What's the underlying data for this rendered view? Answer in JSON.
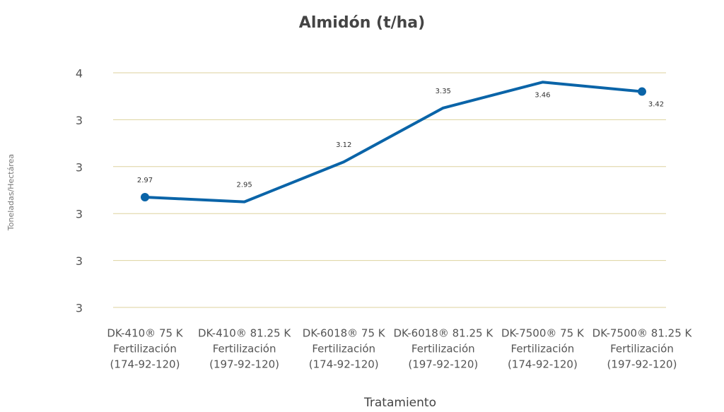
{
  "chart_data": {
    "type": "line",
    "title": "Almidón (t/ha)",
    "x_label": "Tratamiento",
    "y_label": "Toneladas/Hectárea",
    "categories": [
      [
        "DK-410® 75 K",
        "Fertilización",
        "(174-92-120)"
      ],
      [
        "DK-410® 81.25 K",
        "Fertilización",
        "(197-92-120)"
      ],
      [
        "DK-6018® 75 K",
        "Fertilización",
        "(174-92-120)"
      ],
      [
        "DK-6018® 81.25 K",
        "Fertilización",
        "(197-92-120)"
      ],
      [
        "DK-7500® 75 K",
        "Fertilización",
        "(174-92-120)"
      ],
      [
        "DK-7500® 81.25 K",
        "Fertilización",
        "(197-92-120)"
      ]
    ],
    "values": [
      2.97,
      2.95,
      3.12,
      3.35,
      3.46,
      3.42
    ],
    "color": "#0a64a8",
    "ylim": [
      2.5,
      3.5
    ],
    "yticks": [
      {
        "value": 3.5,
        "label": "4"
      },
      {
        "value": 3.3,
        "label": "3"
      },
      {
        "value": 3.1,
        "label": "3"
      },
      {
        "value": 2.9,
        "label": "3"
      },
      {
        "value": 2.7,
        "label": "3"
      },
      {
        "value": 2.5,
        "label": "3"
      }
    ],
    "grid": true
  }
}
